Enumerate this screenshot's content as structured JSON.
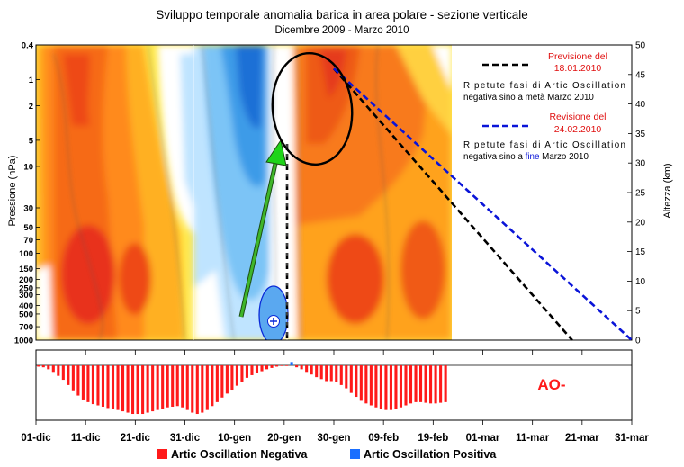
{
  "chart_data": {
    "type": "heatmap",
    "title": "Sviluppo temporale anomalia barica in area polare - sezione verticale",
    "subtitle": "Dicembre 2009 - Marzo 2010",
    "ylabel_left": "Pressione (hPa)",
    "ylabel_right": "Altezza (km)",
    "pressure_ticks": [
      "0.4",
      "1",
      "2",
      "5",
      "10",
      "30",
      "50",
      "70",
      "100",
      "150",
      "200",
      "250",
      "300",
      "400",
      "500",
      "700",
      "1000"
    ],
    "height_ticks": [
      0,
      5,
      10,
      15,
      20,
      25,
      30,
      35,
      40,
      45,
      50
    ],
    "height_range": [
      0,
      50
    ],
    "date_ticks": [
      "01-dic",
      "11-dic",
      "21-dic",
      "31-dic",
      "10-gen",
      "20-gen",
      "30-gen",
      "09-feb",
      "19-feb",
      "01-mar",
      "11-mar",
      "21-mar",
      "31-mar"
    ],
    "date_range_days": [
      0,
      120
    ],
    "data_end_day": 83,
    "forecasts": [
      {
        "title_line1": "Previsione del",
        "title_line2": "18.01.2010",
        "note_line1": "Ripetute fasi di Artic Oscillation",
        "note_line2": "negativa sino a metà Marzo 2010",
        "color": "#000000",
        "from": {
          "day": 60,
          "km": 46
        },
        "to": {
          "day": 108,
          "km": 0
        }
      },
      {
        "title_line1": "Revisione del",
        "title_line2": "24.02.2010",
        "note_line1": "Ripetute fasi di Artic Oscillation",
        "note_line2_a": "negativa sino a ",
        "note_line2_b": "fine",
        "note_line2_c": " Marzo 2010",
        "color": "#0a14d8",
        "from": {
          "day": 60,
          "km": 46
        },
        "to": {
          "day": 120,
          "km": 0
        }
      }
    ],
    "ao_label": "AO-",
    "ao_bars": [
      -0.2,
      -0.3,
      -0.6,
      -1,
      -1.6,
      -2.2,
      -3,
      -3.8,
      -4.6,
      -5.2,
      -5.6,
      -5.9,
      -6.1,
      -6.3,
      -6.5,
      -6.6,
      -6.8,
      -7,
      -7.2,
      -7.4,
      -7.4,
      -7.4,
      -7.2,
      -7,
      -6.8,
      -6.6,
      -6.4,
      -6.3,
      -6.2,
      -6.4,
      -6.8,
      -7.2,
      -7.4,
      -7.2,
      -6.8,
      -6.2,
      -5.6,
      -4.9,
      -4.3,
      -3.7,
      -3.1,
      -2.5,
      -1.9,
      -1.5,
      -1.2,
      -0.9,
      -0.6,
      -0.4,
      -0.2,
      -0.1,
      -0.1,
      0.5,
      -0.3,
      -0.6,
      -1,
      -1.4,
      -1.8,
      -2.1,
      -2.4,
      -2.4,
      -2.6,
      -3,
      -3.5,
      -4.2,
      -4.8,
      -5.4,
      -5.8,
      -6.1,
      -6.4,
      -6.6,
      -6.8,
      -6.8,
      -6.6,
      -6.4,
      -6.1,
      -5.8,
      -5.6,
      -5.6,
      -5.7,
      -5.8,
      -5.8,
      -5.7,
      -5.6
    ],
    "legend": [
      {
        "name": "Artic Oscillation Negativa",
        "color": "#ff1a1a"
      },
      {
        "name": "Artic Oscillation Positiva",
        "color": "#1a6fff"
      }
    ]
  }
}
